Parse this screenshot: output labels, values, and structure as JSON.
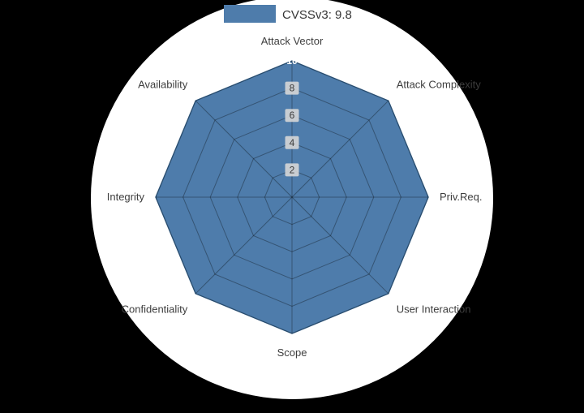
{
  "figure": {
    "background_color": "#000000",
    "plot_background_color": "#ffffff"
  },
  "legend": {
    "position": "top-center",
    "items": [
      {
        "label": "CVSSv3: 9.8",
        "color": "#4e7cab"
      }
    ]
  },
  "chart_data": {
    "type": "radar",
    "title": "",
    "categories": [
      "Attack Vector",
      "Attack Complexity",
      "Priv.Req.",
      "User Interaction",
      "Scope",
      "Confidentiality",
      "Integrity",
      "Availability"
    ],
    "series": [
      {
        "name": "CVSSv3: 9.8",
        "color": "#4e7cab",
        "stroke": "#3d6c99",
        "values": [
          10,
          10,
          10,
          10,
          10,
          10,
          10,
          10
        ]
      }
    ],
    "radial_axis": {
      "ticks": [
        2,
        4,
        6,
        8,
        10
      ],
      "range": [
        0,
        10
      ]
    },
    "grid": true,
    "legend_position": "top-center"
  },
  "colors": {
    "grid_line": "rgba(0,0,0,0.32)",
    "axis_label": "#3d3d3d",
    "tick_label": "#3c3c3c",
    "tick_box": "#d6d6d6"
  }
}
